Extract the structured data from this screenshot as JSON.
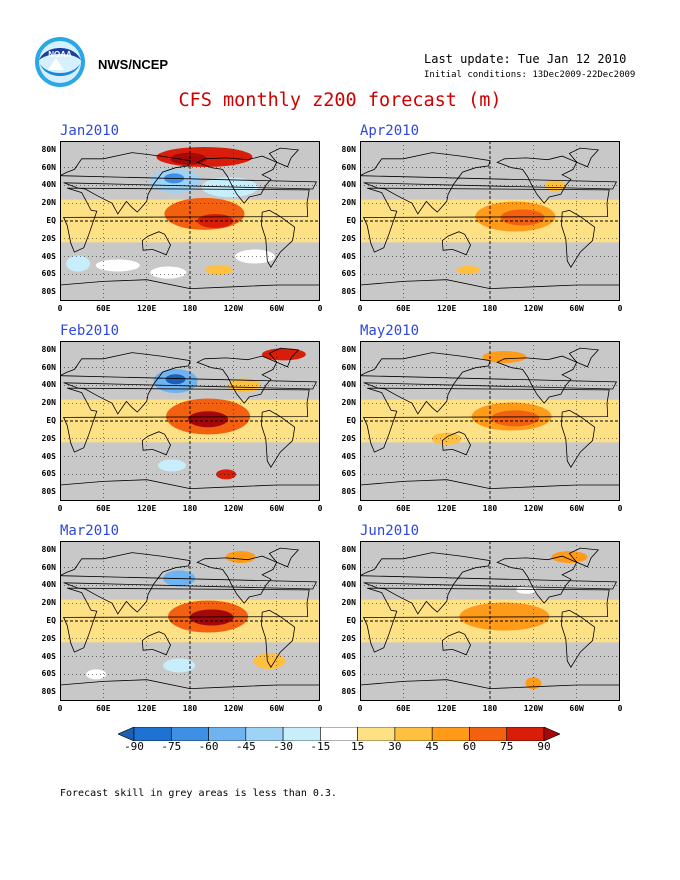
{
  "header": {
    "agency": "NWS/NCEP",
    "last_update": "Last update: Tue Jan 12 2010",
    "initial_conditions": "Initial conditions: 13Dec2009-22Dec2009",
    "title": "CFS monthly z200 forecast (m)",
    "logo_text": "NOAA"
  },
  "axes": {
    "y_ticks": [
      "80N",
      "60N",
      "40N",
      "20N",
      "EQ",
      "20S",
      "40S",
      "60S",
      "80S"
    ],
    "x_ticks": [
      "0",
      "60E",
      "120E",
      "180",
      "120W",
      "60W",
      "0"
    ]
  },
  "panels": [
    {
      "label": "Jan2010",
      "features": [
        {
          "lon": 200,
          "lat": 72,
          "rx": 48,
          "ry": 10,
          "v": 75
        },
        {
          "lon": 178,
          "lat": 70,
          "rx": 18,
          "ry": 6,
          "v": 90
        },
        {
          "lon": 160,
          "lat": 45,
          "rx": 25,
          "ry": 12,
          "v": -45
        },
        {
          "lon": 158,
          "lat": 48,
          "rx": 10,
          "ry": 5,
          "v": -75
        },
        {
          "lon": 235,
          "lat": 38,
          "rx": 28,
          "ry": 10,
          "v": -30
        },
        {
          "lon": 200,
          "lat": 8,
          "rx": 40,
          "ry": 16,
          "v": 60
        },
        {
          "lon": 215,
          "lat": 0,
          "rx": 18,
          "ry": 7,
          "v": 75
        },
        {
          "lon": 80,
          "lat": -50,
          "rx": 22,
          "ry": 6,
          "v": -15
        },
        {
          "lon": 150,
          "lat": -58,
          "rx": 18,
          "ry": 6,
          "v": -15
        },
        {
          "lon": 25,
          "lat": -48,
          "rx": 12,
          "ry": 8,
          "v": -30
        },
        {
          "lon": 270,
          "lat": -40,
          "rx": 20,
          "ry": 7,
          "v": -15
        },
        {
          "lon": 220,
          "lat": -55,
          "rx": 14,
          "ry": 5,
          "v": 30
        }
      ]
    },
    {
      "label": "Apr2010",
      "features": [
        {
          "lon": 215,
          "lat": 5,
          "rx": 40,
          "ry": 15,
          "v": 45
        },
        {
          "lon": 225,
          "lat": 4,
          "rx": 22,
          "ry": 8,
          "v": 60
        },
        {
          "lon": 270,
          "lat": 40,
          "rx": 10,
          "ry": 6,
          "v": 30
        },
        {
          "lon": 150,
          "lat": -55,
          "rx": 12,
          "ry": 4,
          "v": 30
        }
      ]
    },
    {
      "label": "Feb2010",
      "features": [
        {
          "lon": 310,
          "lat": 75,
          "rx": 22,
          "ry": 6,
          "v": 75
        },
        {
          "lon": 160,
          "lat": 45,
          "rx": 22,
          "ry": 12,
          "v": -60
        },
        {
          "lon": 160,
          "lat": 47,
          "rx": 10,
          "ry": 5,
          "v": -90
        },
        {
          "lon": 205,
          "lat": 5,
          "rx": 42,
          "ry": 18,
          "v": 60
        },
        {
          "lon": 205,
          "lat": 2,
          "rx": 20,
          "ry": 8,
          "v": 90
        },
        {
          "lon": 255,
          "lat": 40,
          "rx": 16,
          "ry": 7,
          "v": 30
        },
        {
          "lon": 155,
          "lat": -50,
          "rx": 14,
          "ry": 6,
          "v": -30
        },
        {
          "lon": 230,
          "lat": -60,
          "rx": 10,
          "ry": 5,
          "v": 75
        }
      ]
    },
    {
      "label": "May2010",
      "features": [
        {
          "lon": 200,
          "lat": 72,
          "rx": 22,
          "ry": 6,
          "v": 45
        },
        {
          "lon": 210,
          "lat": 5,
          "rx": 40,
          "ry": 14,
          "v": 45
        },
        {
          "lon": 215,
          "lat": 3,
          "rx": 24,
          "ry": 8,
          "v": 60
        },
        {
          "lon": 120,
          "lat": -20,
          "rx": 15,
          "ry": 6,
          "v": 30
        }
      ]
    },
    {
      "label": "Mar2010",
      "features": [
        {
          "lon": 250,
          "lat": 72,
          "rx": 15,
          "ry": 6,
          "v": 45
        },
        {
          "lon": 165,
          "lat": 48,
          "rx": 16,
          "ry": 8,
          "v": -60
        },
        {
          "lon": 205,
          "lat": 5,
          "rx": 40,
          "ry": 16,
          "v": 60
        },
        {
          "lon": 210,
          "lat": 4,
          "rx": 22,
          "ry": 8,
          "v": 90
        },
        {
          "lon": 165,
          "lat": -50,
          "rx": 16,
          "ry": 7,
          "v": -30
        },
        {
          "lon": 50,
          "lat": -60,
          "rx": 10,
          "ry": 5,
          "v": -15
        },
        {
          "lon": 290,
          "lat": -45,
          "rx": 16,
          "ry": 8,
          "v": 30
        }
      ]
    },
    {
      "label": "Jun2010",
      "features": [
        {
          "lon": 290,
          "lat": 72,
          "rx": 18,
          "ry": 6,
          "v": 45
        },
        {
          "lon": 200,
          "lat": 5,
          "rx": 45,
          "ry": 14,
          "v": 45
        },
        {
          "lon": 240,
          "lat": -70,
          "rx": 8,
          "ry": 6,
          "v": 45
        },
        {
          "lon": 230,
          "lat": 35,
          "rx": 10,
          "ry": 4,
          "v": -15
        }
      ]
    }
  ],
  "colorbar": {
    "levels": [
      "-90",
      "-75",
      "-60",
      "-45",
      "-30",
      "-15",
      "15",
      "30",
      "45",
      "60",
      "75",
      "90"
    ],
    "colors": [
      "#1d5fb4",
      "#1e72d2",
      "#3f8fe4",
      "#6fb3f0",
      "#9fd3f6",
      "#c8eefc",
      "#ffffff",
      "#ffe185",
      "#ffc040",
      "#ff9b18",
      "#f26010",
      "#d81e0a",
      "#a50808"
    ]
  },
  "grey_color": "#c8c8c8",
  "footnote": "Forecast skill in grey areas is less than 0.3."
}
